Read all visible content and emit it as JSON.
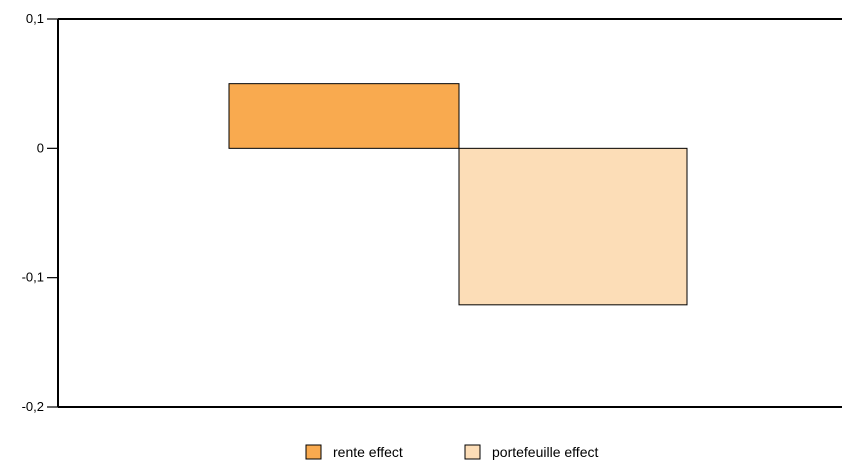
{
  "chart_data": {
    "type": "bar",
    "title": "",
    "xlabel": "",
    "ylabel": "",
    "ylim": [
      -0.2,
      0.1
    ],
    "y_ticks": [
      {
        "value": 0.1,
        "label": "0,1"
      },
      {
        "value": 0,
        "label": "0"
      },
      {
        "value": -0.1,
        "label": "-0,1"
      },
      {
        "value": -0.2,
        "label": "-0,2"
      }
    ],
    "grid": false,
    "legend_position": "bottom",
    "series": [
      {
        "name": "rente effect",
        "value": 0.05,
        "color": "#F9AA4F"
      },
      {
        "name": "portefeuille effect",
        "value": -0.121,
        "color": "#FCDDB7"
      }
    ],
    "axis_color": "#000000",
    "bar_border_color": "#000000"
  }
}
